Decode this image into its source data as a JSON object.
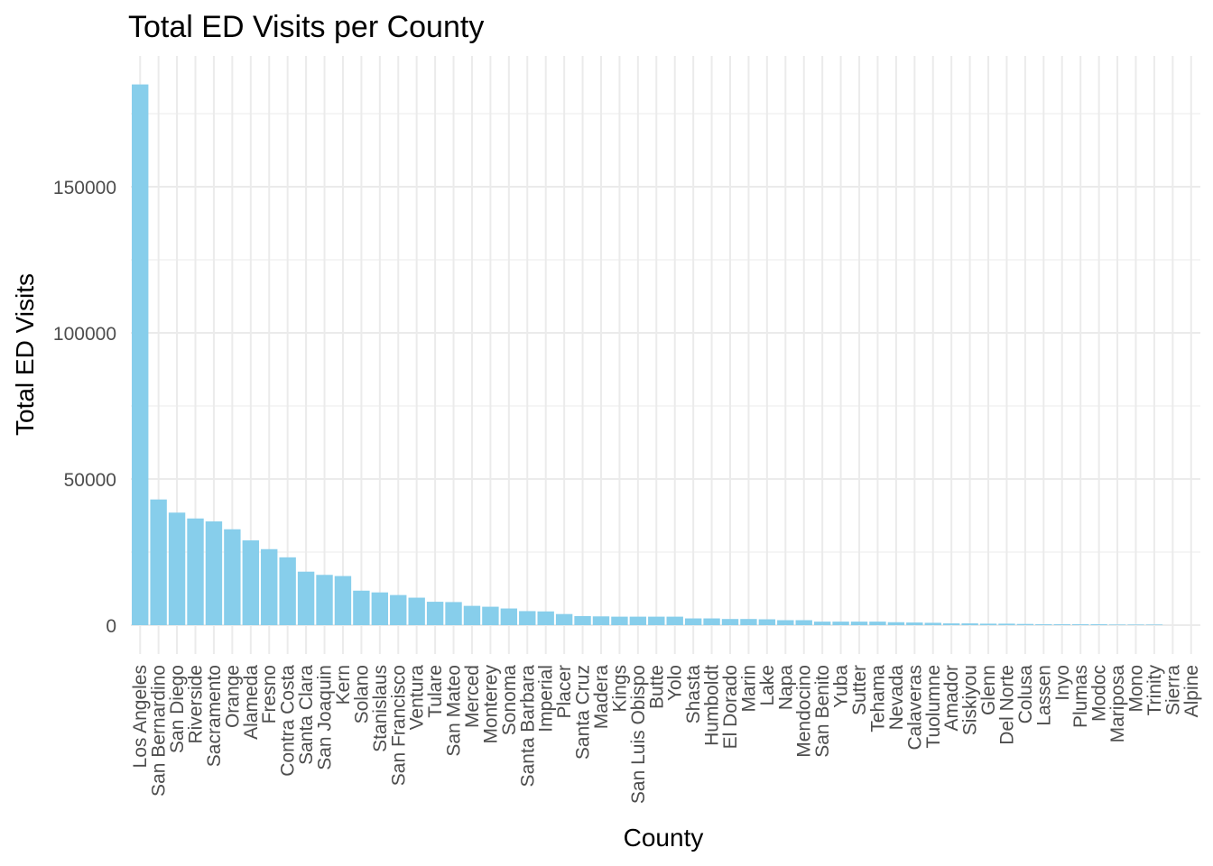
{
  "chart_data": {
    "type": "bar",
    "title": "Total ED Visits per County",
    "xlabel": "County",
    "ylabel": "Total ED Visits",
    "ylim": [
      -4000,
      195000
    ],
    "yticks": [
      0,
      50000,
      100000,
      150000
    ],
    "grid": true,
    "bar_color": "#87CEEB",
    "categories": [
      "Los Angeles",
      "San Bernardino",
      "San Diego",
      "Riverside",
      "Sacramento",
      "Orange",
      "Alameda",
      "Fresno",
      "Contra Costa",
      "Santa Clara",
      "San Joaquin",
      "Kern",
      "Solano",
      "Stanislaus",
      "San Francisco",
      "Ventura",
      "Tulare",
      "San Mateo",
      "Merced",
      "Monterey",
      "Sonoma",
      "Santa Barbara",
      "Imperial",
      "Placer",
      "Santa Cruz",
      "Madera",
      "Kings",
      "San Luis Obispo",
      "Butte",
      "Yolo",
      "Shasta",
      "Humboldt",
      "El Dorado",
      "Marin",
      "Lake",
      "Napa",
      "Mendocino",
      "San Benito",
      "Yuba",
      "Sutter",
      "Tehama",
      "Nevada",
      "Calaveras",
      "Tuolumne",
      "Amador",
      "Siskiyou",
      "Glenn",
      "Del Norte",
      "Colusa",
      "Lassen",
      "Inyo",
      "Plumas",
      "Modoc",
      "Mariposa",
      "Mono",
      "Trinity",
      "Sierra",
      "Alpine"
    ],
    "values": [
      185000,
      43000,
      38500,
      36500,
      35500,
      32800,
      29000,
      26000,
      23200,
      18300,
      17200,
      16800,
      11800,
      11200,
      10300,
      9400,
      8000,
      7900,
      6600,
      6300,
      5700,
      4800,
      4700,
      3800,
      3100,
      3000,
      2900,
      2900,
      2900,
      2900,
      2300,
      2300,
      2100,
      2100,
      2000,
      1700,
      1700,
      1200,
      1200,
      1200,
      1200,
      1000,
      900,
      800,
      600,
      600,
      500,
      500,
      400,
      300,
      300,
      300,
      300,
      200,
      200,
      200,
      0,
      0
    ]
  }
}
